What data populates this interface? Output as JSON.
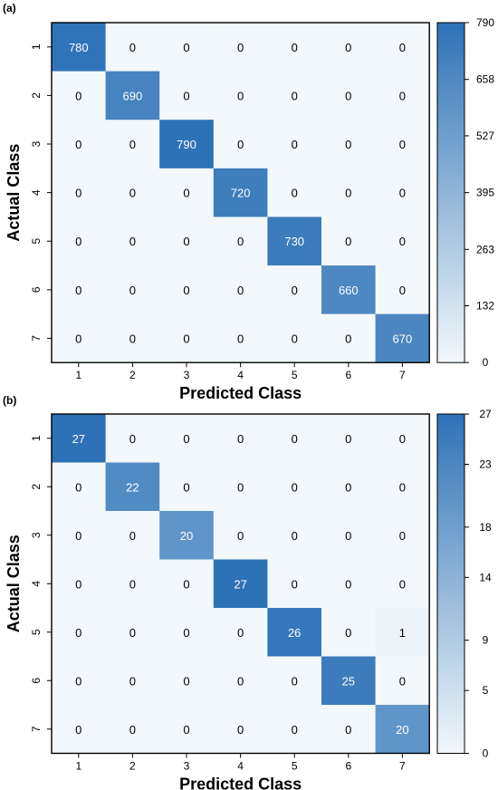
{
  "chart_data": [
    {
      "type": "heatmap",
      "panel_label": "(a)",
      "xlabel": "Predicted Class",
      "ylabel": "Actual Class",
      "x_categories": [
        "1",
        "2",
        "3",
        "4",
        "5",
        "6",
        "7"
      ],
      "y_categories": [
        "1",
        "2",
        "3",
        "4",
        "5",
        "6",
        "7"
      ],
      "values": [
        [
          780,
          0,
          0,
          0,
          0,
          0,
          0
        ],
        [
          0,
          690,
          0,
          0,
          0,
          0,
          0
        ],
        [
          0,
          0,
          790,
          0,
          0,
          0,
          0
        ],
        [
          0,
          0,
          0,
          720,
          0,
          0,
          0
        ],
        [
          0,
          0,
          0,
          0,
          730,
          0,
          0
        ],
        [
          0,
          0,
          0,
          0,
          0,
          660,
          0
        ],
        [
          0,
          0,
          0,
          0,
          0,
          0,
          670
        ]
      ],
      "colorbar": {
        "min": 0,
        "max": 790,
        "ticks": [
          "0",
          "132",
          "263",
          "395",
          "527",
          "658",
          "790"
        ]
      },
      "colors": {
        "low": "#f2f8fb",
        "high": "#2d72b7"
      }
    },
    {
      "type": "heatmap",
      "panel_label": "(b)",
      "xlabel": "Predicted Class",
      "ylabel": "Actual Class",
      "x_categories": [
        "1",
        "2",
        "3",
        "4",
        "5",
        "6",
        "7"
      ],
      "y_categories": [
        "1",
        "2",
        "3",
        "4",
        "5",
        "6",
        "7"
      ],
      "values": [
        [
          27,
          0,
          0,
          0,
          0,
          0,
          0
        ],
        [
          0,
          22,
          0,
          0,
          0,
          0,
          0
        ],
        [
          0,
          0,
          20,
          0,
          0,
          0,
          0
        ],
        [
          0,
          0,
          0,
          27,
          0,
          0,
          0
        ],
        [
          0,
          0,
          0,
          0,
          26,
          0,
          1
        ],
        [
          0,
          0,
          0,
          0,
          0,
          25,
          0
        ],
        [
          0,
          0,
          0,
          0,
          0,
          0,
          20
        ]
      ],
      "colorbar": {
        "min": 0,
        "max": 27,
        "ticks": [
          "0",
          "5",
          "9",
          "14",
          "18",
          "23",
          "27"
        ]
      },
      "colors": {
        "low": "#f2f8fb",
        "high": "#2d72b7"
      }
    }
  ]
}
